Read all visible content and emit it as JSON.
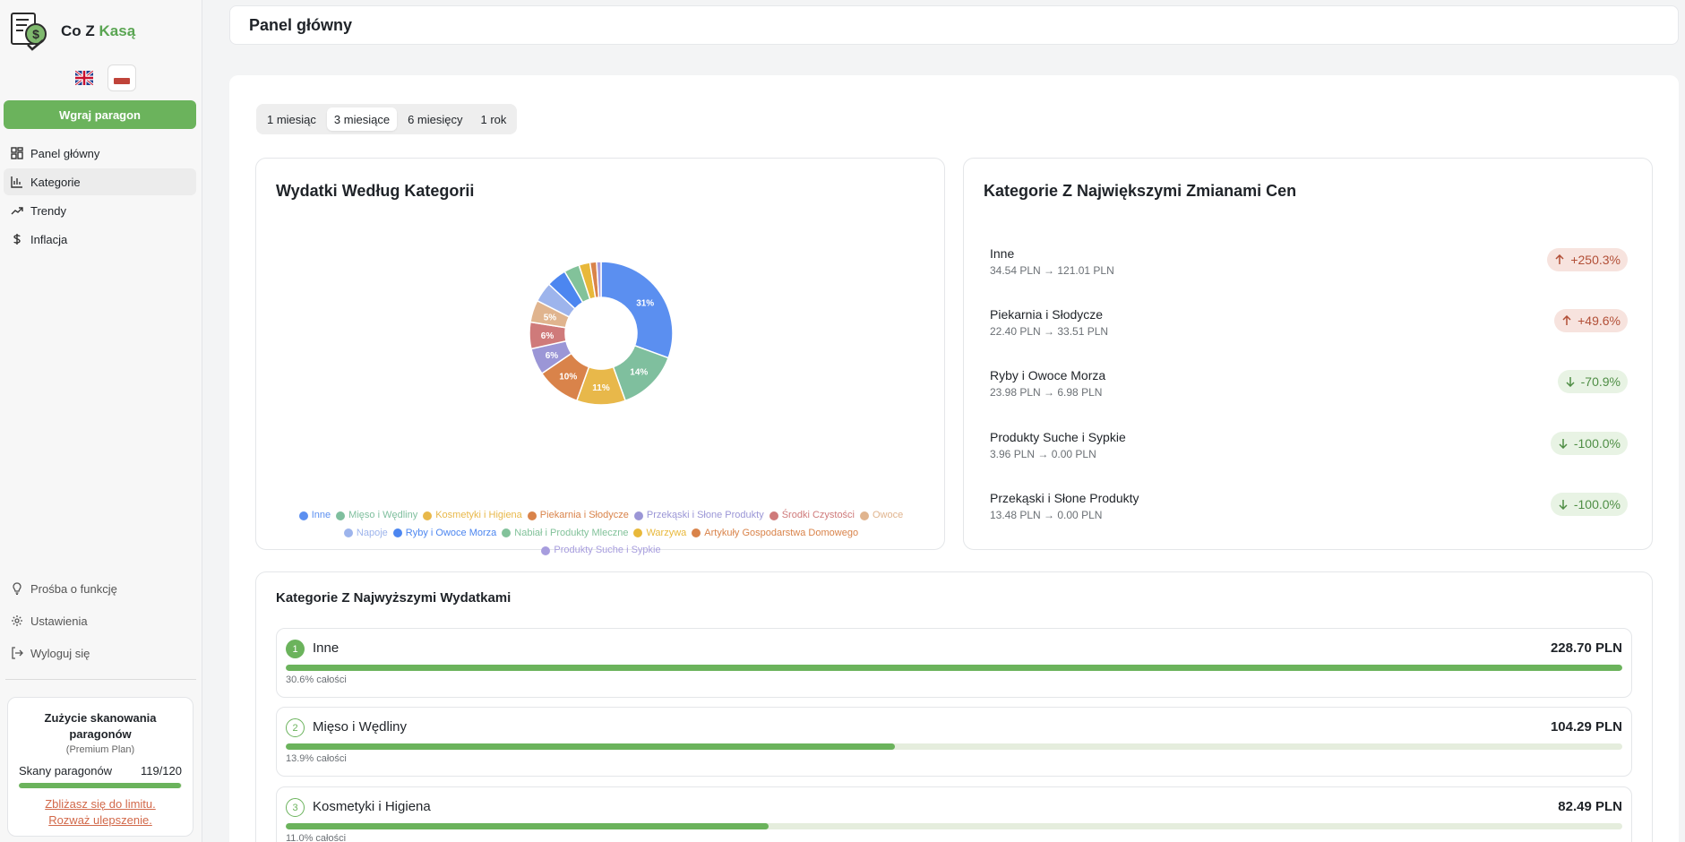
{
  "brand": {
    "name_prefix": "Co Z",
    "name_accent": "Kasą"
  },
  "languages": [
    {
      "code": "en",
      "active": false
    },
    {
      "code": "pl",
      "active": true
    }
  ],
  "sidebar": {
    "upload_label": "Wgraj paragon",
    "nav": [
      {
        "label": "Panel główny",
        "icon": "dashboard-icon",
        "active": false
      },
      {
        "label": "Kategorie",
        "icon": "bar-chart-icon",
        "active": true
      },
      {
        "label": "Trendy",
        "icon": "trend-up-icon",
        "active": false
      },
      {
        "label": "Inflacja",
        "icon": "dollar-icon",
        "active": false
      }
    ],
    "bottom": [
      {
        "label": "Prośba o funkcję",
        "icon": "lightbulb-icon"
      },
      {
        "label": "Ustawienia",
        "icon": "gear-icon"
      },
      {
        "label": "Wyloguj się",
        "icon": "logout-icon"
      }
    ],
    "usage": {
      "title": "Zużycie skanowania paragonów",
      "plan": "(Premium Plan)",
      "label": "Skany paragonów",
      "count": "119/120",
      "fraction": 0.992,
      "warning_line1": "Zbliżasz się do limitu.",
      "warning_line2": "Rozważ ulepszenie."
    }
  },
  "header": {
    "title": "Panel główny"
  },
  "periods": [
    {
      "label": "1 miesiąc",
      "active": false
    },
    {
      "label": "3 miesiące",
      "active": true
    },
    {
      "label": "6 miesięcy",
      "active": false
    },
    {
      "label": "1 rok",
      "active": false
    }
  ],
  "chart_data": {
    "type": "pie",
    "title": "Wydatki Według Kategorii",
    "labels": [
      "Inne",
      "Mięso i Wędliny",
      "Kosmetyki i Higiena",
      "Piekarnia i Słodycze",
      "Przekąski i Słone Produkty",
      "Środki Czystości",
      "Owoce",
      "Napoje",
      "Ryby i Owoce Morza",
      "Nabiał i Produkty Mleczne",
      "Warzywa",
      "Artykuły Gospodarstwa Domowego",
      "Produkty Suche i Sypkie"
    ],
    "values": [
      30.6,
      13.9,
      11.0,
      10.0,
      6.0,
      6.0,
      5.0,
      4.5,
      4.5,
      3.5,
      2.5,
      1.5,
      1.0
    ],
    "colors": [
      "#5b8ff0",
      "#7fbf9e",
      "#e8b84a",
      "#d9834a",
      "#9b96d6",
      "#cf7a7a",
      "#e0b48e",
      "#9db4ec",
      "#4c86f0",
      "#82c29a",
      "#e8b83a",
      "#d9834a",
      "#a79dde"
    ],
    "data_labels": [
      "31%",
      "14%",
      "11%",
      "10%",
      "6%",
      "6%",
      "5%",
      "",
      "",
      "",
      "",
      "",
      ""
    ],
    "legend_position": "bottom"
  },
  "price_changes": {
    "title": "Kategorie Z Największymi Zmianami Cen",
    "items": [
      {
        "name": "Inne",
        "detail": "34.54 PLN → 121.01 PLN",
        "change": "+250.3%",
        "direction": "up"
      },
      {
        "name": "Piekarnia i Słodycze",
        "detail": "22.40 PLN → 33.51 PLN",
        "change": "+49.6%",
        "direction": "up"
      },
      {
        "name": "Ryby i Owoce Morza",
        "detail": "23.98 PLN → 6.98 PLN",
        "change": "-70.9%",
        "direction": "down"
      },
      {
        "name": "Produkty Suche i Sypkie",
        "detail": "3.96 PLN → 0.00 PLN",
        "change": "-100.0%",
        "direction": "down"
      },
      {
        "name": "Przekąski i Słone Produkty",
        "detail": "13.48 PLN → 0.00 PLN",
        "change": "-100.0%",
        "direction": "down"
      }
    ]
  },
  "top_spending": {
    "title": "Kategorie Z Najwyższymi Wydatkami",
    "items": [
      {
        "rank": "1",
        "name": "Inne",
        "amount": "228.70 PLN",
        "share": "30.6% całości",
        "fraction": 1.0
      },
      {
        "rank": "2",
        "name": "Mięso i Wędliny",
        "amount": "104.29 PLN",
        "share": "13.9% całości",
        "fraction": 0.456
      },
      {
        "rank": "3",
        "name": "Kosmetyki i Higiena",
        "amount": "82.49 PLN",
        "share": "11.0% całości",
        "fraction": 0.361
      }
    ]
  }
}
